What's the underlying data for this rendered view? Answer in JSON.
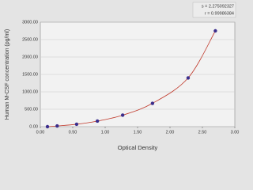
{
  "chart_data": {
    "type": "scatter",
    "x_label": "Optical Density",
    "y_label": "Human M-CSF concentration (pg/ml)",
    "annotations": [
      "s = 2.275092327",
      "r = 0.99986384"
    ],
    "x": [
      0.11,
      0.26,
      0.56,
      0.88,
      1.27,
      1.73,
      2.28,
      2.7
    ],
    "series": [
      {
        "color": "#3b2e8c",
        "line_color": "#c0392b",
        "values": [
          0,
          20,
          70,
          160,
          330,
          670,
          1400,
          2750
        ]
      }
    ],
    "line": true,
    "xlim": [
      0,
      3
    ],
    "ylim": [
      0,
      3000
    ],
    "xticks": [
      {
        "value": 0,
        "label": "0.00"
      },
      {
        "value": 0.5,
        "label": "0.50"
      },
      {
        "value": 1,
        "label": "1.00"
      },
      {
        "value": 1.5,
        "label": "1.50"
      },
      {
        "value": 2,
        "label": "2.00"
      },
      {
        "value": 2.5,
        "label": "2.50"
      },
      {
        "value": 3,
        "label": "3.00"
      }
    ],
    "yticks": [
      {
        "value": 0,
        "label": "0.00"
      },
      {
        "value": 500,
        "label": "500.00"
      },
      {
        "value": 1000,
        "label": "1000.00"
      },
      {
        "value": 1500,
        "label": "1500.00"
      },
      {
        "value": 2000,
        "label": "2000.00"
      },
      {
        "value": 2500,
        "label": "2500.00"
      },
      {
        "value": 3000,
        "label": "3000.00"
      }
    ],
    "grid": true
  }
}
